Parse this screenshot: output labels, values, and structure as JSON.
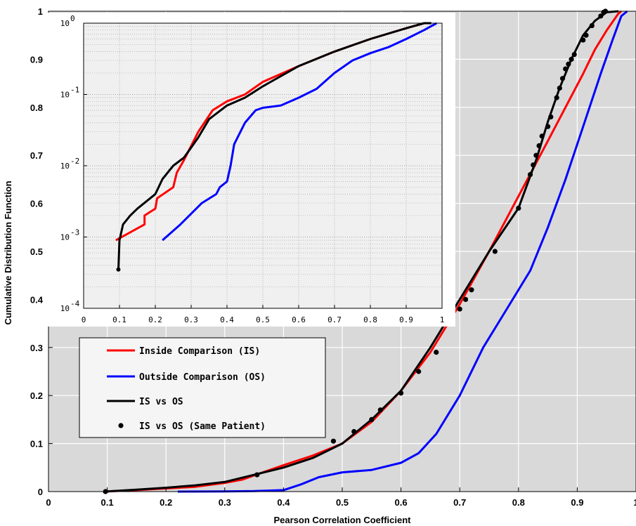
{
  "chart_data": {
    "type": "line",
    "xlabel": "Pearson Correlation Coefficient",
    "ylabel": "Cumulative Distribution Function",
    "xlim": [
      0,
      1
    ],
    "ylim": [
      0,
      1
    ],
    "xticks": [
      "0",
      "0.1",
      "0.2",
      "0.3",
      "0.4",
      "0.5",
      "0.6",
      "0.7",
      "0.8",
      "0.9",
      "1"
    ],
    "yticks": [
      "0",
      "0.1",
      "0.2",
      "0.3",
      "0.4",
      "0.5",
      "0.6",
      "0.7",
      "0.8",
      "0.9",
      "1"
    ],
    "grid": true,
    "legend_position": "lower-left",
    "series": [
      {
        "name": "Inside Comparison (IS)",
        "color": "#ff0000",
        "marker": "none",
        "x": [
          0.095,
          0.15,
          0.25,
          0.3,
          0.33,
          0.36,
          0.4,
          0.45,
          0.5,
          0.55,
          0.6,
          0.65,
          0.7,
          0.75,
          0.8,
          0.85,
          0.88,
          0.91,
          0.93,
          0.95,
          0.97,
          0.975
        ],
        "y": [
          0.0,
          0.003,
          0.01,
          0.018,
          0.025,
          0.038,
          0.055,
          0.075,
          0.1,
          0.145,
          0.21,
          0.29,
          0.39,
          0.5,
          0.615,
          0.73,
          0.8,
          0.87,
          0.92,
          0.96,
          0.995,
          1.0
        ]
      },
      {
        "name": "Outside Comparison (OS)",
        "color": "#0000ff",
        "marker": "none",
        "x": [
          0.22,
          0.3,
          0.35,
          0.4,
          0.43,
          0.46,
          0.5,
          0.55,
          0.6,
          0.63,
          0.66,
          0.7,
          0.74,
          0.78,
          0.82,
          0.85,
          0.88,
          0.91,
          0.94,
          0.96,
          0.975,
          0.985
        ],
        "y": [
          0.0,
          0.0005,
          0.001,
          0.003,
          0.015,
          0.03,
          0.04,
          0.045,
          0.06,
          0.08,
          0.12,
          0.2,
          0.3,
          0.38,
          0.46,
          0.55,
          0.65,
          0.76,
          0.87,
          0.94,
          0.99,
          1.0
        ]
      },
      {
        "name": "IS vs OS",
        "color": "#000000",
        "marker": "none",
        "x": [
          0.095,
          0.15,
          0.2,
          0.25,
          0.3,
          0.35,
          0.4,
          0.45,
          0.5,
          0.55,
          0.6,
          0.65,
          0.7,
          0.75,
          0.8,
          0.83,
          0.85,
          0.87,
          0.89,
          0.91,
          0.93,
          0.95,
          0.97
        ],
        "y": [
          0.0,
          0.004,
          0.008,
          0.013,
          0.02,
          0.035,
          0.05,
          0.07,
          0.1,
          0.15,
          0.21,
          0.3,
          0.4,
          0.5,
          0.59,
          0.69,
          0.77,
          0.84,
          0.9,
          0.95,
          0.98,
          0.998,
          1.0
        ]
      },
      {
        "name": "IS vs OS (Same Patient)",
        "color": "#000000",
        "marker": "dot",
        "x": [
          0.097,
          0.355,
          0.485,
          0.52,
          0.55,
          0.565,
          0.6,
          0.63,
          0.66,
          0.7,
          0.71,
          0.72,
          0.76,
          0.8,
          0.82,
          0.825,
          0.83,
          0.835,
          0.84,
          0.85,
          0.855,
          0.865,
          0.87,
          0.875,
          0.88,
          0.885,
          0.89,
          0.895,
          0.91,
          0.915,
          0.925,
          0.94,
          0.945,
          0.948
        ],
        "y": [
          0.0,
          0.035,
          0.105,
          0.125,
          0.15,
          0.17,
          0.205,
          0.25,
          0.29,
          0.38,
          0.4,
          0.42,
          0.5,
          0.59,
          0.66,
          0.68,
          0.7,
          0.72,
          0.74,
          0.76,
          0.78,
          0.82,
          0.84,
          0.86,
          0.88,
          0.89,
          0.9,
          0.91,
          0.94,
          0.95,
          0.97,
          0.99,
          0.998,
          1.0
        ]
      }
    ],
    "inset": {
      "type": "line",
      "yscale": "log",
      "xlim": [
        0,
        1
      ],
      "ylim": [
        0.0001,
        1
      ],
      "xticks": [
        "0",
        "0.1",
        "0.2",
        "0.3",
        "0.4",
        "0.5",
        "0.6",
        "0.7",
        "0.8",
        "0.9",
        "1"
      ],
      "yticks": [
        "10",
        "10",
        "10",
        "10",
        "10"
      ],
      "ytick_exponents": [
        "-4",
        "-3",
        "-2",
        "-1",
        "0"
      ],
      "grid": true,
      "series": [
        {
          "name": "Inside Comparison (IS)",
          "color": "#ff0000",
          "x": [
            0.09,
            0.17,
            0.17,
            0.2,
            0.205,
            0.25,
            0.26,
            0.28,
            0.32,
            0.36,
            0.4,
            0.45,
            0.5,
            0.6,
            0.7,
            0.8,
            0.9,
            0.95
          ],
          "y": [
            0.0009,
            0.0015,
            0.002,
            0.0025,
            0.0035,
            0.005,
            0.008,
            0.012,
            0.03,
            0.06,
            0.08,
            0.1,
            0.15,
            0.25,
            0.4,
            0.6,
            0.85,
            1.0
          ]
        },
        {
          "name": "Outside Comparison (OS)",
          "color": "#0000ff",
          "x": [
            0.22,
            0.27,
            0.33,
            0.37,
            0.38,
            0.4,
            0.41,
            0.42,
            0.45,
            0.48,
            0.5,
            0.55,
            0.6,
            0.65,
            0.7,
            0.75,
            0.8,
            0.85,
            0.9,
            0.95,
            0.985
          ],
          "y": [
            0.0009,
            0.0015,
            0.003,
            0.004,
            0.005,
            0.006,
            0.01,
            0.02,
            0.04,
            0.06,
            0.065,
            0.07,
            0.09,
            0.12,
            0.2,
            0.3,
            0.38,
            0.46,
            0.6,
            0.8,
            1.0
          ]
        },
        {
          "name": "IS vs OS",
          "color": "#000000",
          "x": [
            0.097,
            0.1,
            0.11,
            0.13,
            0.15,
            0.2,
            0.22,
            0.25,
            0.28,
            0.3,
            0.32,
            0.35,
            0.4,
            0.45,
            0.5,
            0.6,
            0.7,
            0.8,
            0.9,
            0.95,
            0.97
          ],
          "y": [
            0.00035,
            0.0009,
            0.0015,
            0.002,
            0.0025,
            0.004,
            0.0065,
            0.01,
            0.013,
            0.018,
            0.025,
            0.045,
            0.07,
            0.09,
            0.13,
            0.25,
            0.4,
            0.6,
            0.85,
            1.0,
            1.0
          ]
        }
      ],
      "markers": {
        "x": [
          0.097
        ],
        "y": [
          0.00035
        ]
      }
    },
    "legend": {
      "entries": [
        "Inside Comparison (IS)",
        "Outside Comparison (OS)",
        "IS vs OS",
        "IS vs OS (Same Patient)"
      ],
      "colors": [
        "#ff0000",
        "#0000ff",
        "#000000",
        "#000000"
      ],
      "styles": [
        "line",
        "line",
        "line",
        "dot"
      ]
    }
  }
}
